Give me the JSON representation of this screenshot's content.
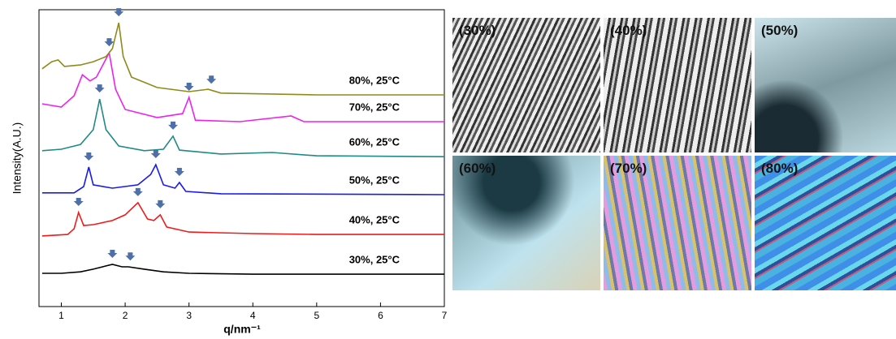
{
  "chart_data": {
    "type": "line",
    "xlabel": "q/nm⁻¹",
    "ylabel": "Intensity(A.U.)",
    "xlim": [
      0.65,
      7
    ],
    "xticks": [
      1,
      2,
      3,
      4,
      5,
      6,
      7
    ],
    "ylim": [
      0,
      100
    ],
    "series": [
      {
        "name": "30%, 25°C",
        "color": "#000000",
        "x": [
          0.7,
          1.0,
          1.3,
          1.5,
          1.7,
          1.8,
          1.95,
          2.05,
          2.3,
          2.6,
          3.0,
          4,
          5,
          6,
          7
        ],
        "values": [
          11.2,
          11.2,
          11.7,
          12.6,
          13.7,
          14.2,
          13.4,
          13.4,
          12.6,
          11.7,
          11.2,
          10.9,
          10.9,
          10.9,
          10.9
        ],
        "peaks": [
          1.8,
          2.08
        ]
      },
      {
        "name": "40%, 25°C",
        "color": "#ee1c1c",
        "x": [
          0.7,
          1.1,
          1.2,
          1.27,
          1.35,
          1.5,
          1.8,
          2.0,
          2.2,
          2.35,
          2.45,
          2.55,
          2.65,
          3.0,
          4,
          5,
          7
        ],
        "values": [
          23.8,
          24.3,
          26.2,
          31.7,
          27.3,
          27.6,
          29.0,
          30.9,
          35.0,
          29.5,
          29.0,
          30.9,
          26.8,
          25.1,
          24.6,
          24.3,
          24.3
        ],
        "peaks": [
          1.27,
          2.2,
          2.55
        ]
      },
      {
        "name": "50%, 25°C",
        "color": "#1a1aee",
        "x": [
          0.7,
          1.2,
          1.35,
          1.43,
          1.5,
          1.8,
          2.2,
          2.4,
          2.48,
          2.6,
          2.78,
          2.85,
          2.95,
          3.5,
          7
        ],
        "values": [
          38.3,
          38.3,
          40.4,
          47.0,
          41.0,
          39.9,
          41.0,
          44.5,
          47.8,
          41.0,
          39.9,
          41.8,
          38.8,
          38.0,
          37.7
        ],
        "peaks": [
          1.43,
          2.48,
          2.85
        ]
      },
      {
        "name": "60%, 25°C",
        "color": "#1f8a87",
        "x": [
          0.7,
          1.0,
          1.3,
          1.5,
          1.6,
          1.7,
          1.9,
          2.3,
          2.6,
          2.75,
          2.85,
          3.5,
          4.3,
          5,
          7
        ],
        "values": [
          52.5,
          53.0,
          54.6,
          59.6,
          69.9,
          59.6,
          54.1,
          52.5,
          53.0,
          57.4,
          52.7,
          51.4,
          51.9,
          50.8,
          50.5
        ],
        "peaks": [
          1.6,
          2.75
        ]
      },
      {
        "name": "70%, 25°C",
        "color": "#ee22ee",
        "x": [
          0.7,
          1.0,
          1.2,
          1.33,
          1.45,
          1.55,
          1.65,
          1.75,
          1.85,
          2.0,
          2.5,
          2.9,
          3.0,
          3.1,
          3.8,
          4.6,
          4.8,
          7
        ],
        "values": [
          68.3,
          67.2,
          71.0,
          78.1,
          76.0,
          77.3,
          81.4,
          85.5,
          73.2,
          66.4,
          63.7,
          65.0,
          70.5,
          62.8,
          62.3,
          64.2,
          62.3,
          62.3
        ],
        "peaks": [
          1.75,
          3.0
        ]
      },
      {
        "name": "80%, 25°C",
        "color": "#8f8a1a",
        "x": [
          0.7,
          0.85,
          0.95,
          1.05,
          1.3,
          1.5,
          1.7,
          1.8,
          1.9,
          1.97,
          2.1,
          2.5,
          3.0,
          3.3,
          3.5,
          5,
          7
        ],
        "values": [
          80.1,
          82.5,
          83.1,
          80.9,
          81.4,
          82.5,
          84.2,
          86.9,
          95.6,
          84.2,
          77.3,
          73.8,
          72.4,
          73.2,
          71.9,
          71.3,
          71.3
        ],
        "peaks": [
          1.9,
          3.35
        ]
      }
    ]
  },
  "micrographs": [
    "(30%)",
    "(40%)",
    "(50%)",
    "(60%)",
    "(70%)",
    "(80%)"
  ]
}
